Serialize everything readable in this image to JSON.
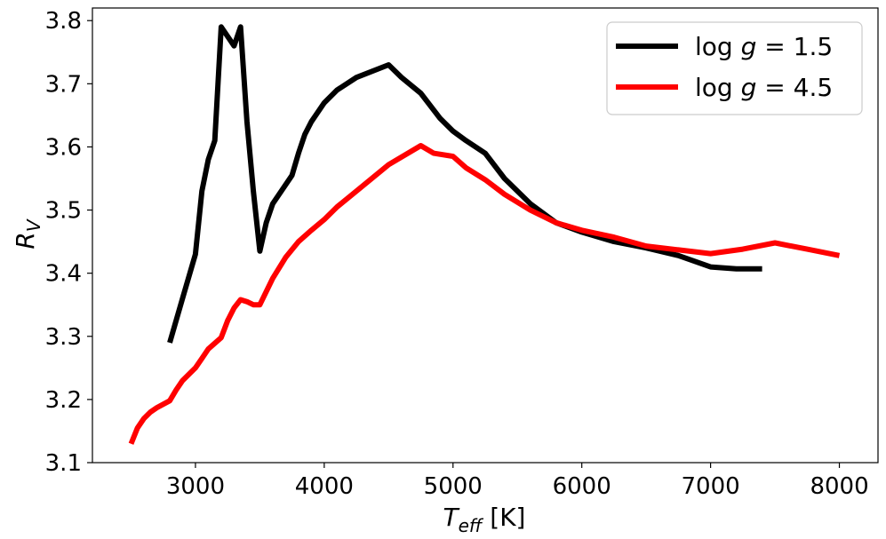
{
  "chart_data": {
    "type": "line",
    "title": "",
    "xlabel": {
      "main": "T",
      "sub": "eff",
      "unit": " [K]"
    },
    "ylabel": {
      "main": "R",
      "sub": "V"
    },
    "xlim": [
      2200,
      8300
    ],
    "ylim": [
      3.1,
      3.82
    ],
    "xticks": [
      3000,
      4000,
      5000,
      6000,
      7000,
      8000
    ],
    "xtick_labels": [
      "3000",
      "4000",
      "5000",
      "6000",
      "7000",
      "8000"
    ],
    "yticks": [
      3.1,
      3.2,
      3.3,
      3.4,
      3.5,
      3.6,
      3.7,
      3.8
    ],
    "ytick_labels": [
      "3.1",
      "3.2",
      "3.3",
      "3.4",
      "3.5",
      "3.6",
      "3.7",
      "3.8"
    ],
    "grid": false,
    "legend_position": "top-right",
    "series": [
      {
        "name": "log g = 1.5",
        "legend": {
          "prefix": "log ",
          "italic": "g",
          "suffix": " = 1.5"
        },
        "color": "#000000",
        "x": [
          2800,
          2900,
          3000,
          3050,
          3100,
          3150,
          3200,
          3300,
          3350,
          3400,
          3450,
          3500,
          3550,
          3600,
          3700,
          3750,
          3800,
          3850,
          3900,
          4000,
          4100,
          4250,
          4500,
          4600,
          4750,
          4900,
          5000,
          5100,
          5250,
          5400,
          5600,
          5800,
          6000,
          6250,
          6500,
          6750,
          7000,
          7200,
          7400
        ],
        "y": [
          3.29,
          3.36,
          3.43,
          3.53,
          3.58,
          3.61,
          3.79,
          3.76,
          3.79,
          3.64,
          3.53,
          3.435,
          3.48,
          3.51,
          3.54,
          3.555,
          3.59,
          3.62,
          3.64,
          3.67,
          3.69,
          3.71,
          3.73,
          3.71,
          3.685,
          3.645,
          3.625,
          3.61,
          3.59,
          3.55,
          3.51,
          3.48,
          3.465,
          3.45,
          3.44,
          3.428,
          3.41,
          3.407,
          3.407
        ]
      },
      {
        "name": "log g = 4.5",
        "legend": {
          "prefix": "log ",
          "italic": "g",
          "suffix": " = 4.5"
        },
        "color": "#ff0000",
        "x": [
          2500,
          2550,
          2600,
          2650,
          2700,
          2800,
          2850,
          2900,
          2950,
          3000,
          3050,
          3100,
          3200,
          3250,
          3300,
          3350,
          3400,
          3450,
          3500,
          3600,
          3700,
          3800,
          3900,
          4000,
          4100,
          4250,
          4500,
          4750,
          4850,
          5000,
          5100,
          5250,
          5400,
          5600,
          5800,
          6000,
          6250,
          6500,
          6750,
          7000,
          7250,
          7500,
          7750,
          8000
        ],
        "y": [
          3.13,
          3.155,
          3.17,
          3.18,
          3.187,
          3.198,
          3.215,
          3.23,
          3.24,
          3.25,
          3.265,
          3.28,
          3.298,
          3.325,
          3.345,
          3.358,
          3.355,
          3.35,
          3.35,
          3.392,
          3.425,
          3.45,
          3.468,
          3.485,
          3.505,
          3.53,
          3.572,
          3.602,
          3.59,
          3.585,
          3.567,
          3.548,
          3.525,
          3.5,
          3.48,
          3.468,
          3.457,
          3.443,
          3.437,
          3.431,
          3.438,
          3.448,
          3.438,
          3.428
        ]
      }
    ]
  }
}
